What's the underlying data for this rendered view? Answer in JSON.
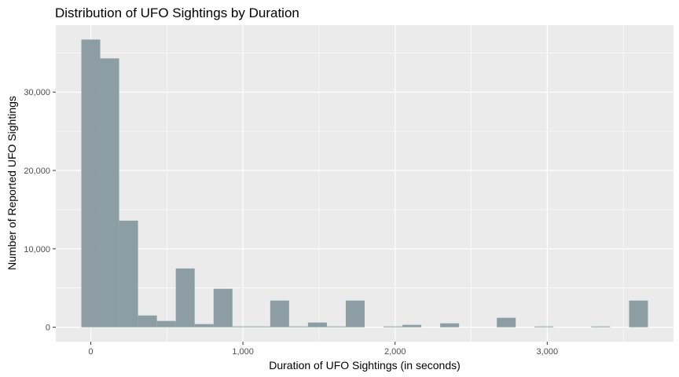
{
  "chart_data": {
    "type": "bar",
    "subtype": "histogram",
    "title": "Distribution of UFO Sightings by Duration",
    "xlabel": "Duration of UFO Sightings (in seconds)",
    "ylabel": "Number of Reported UFO Sightings",
    "bin_width": 124.1,
    "bin_centers": [
      0,
      124.1,
      248.3,
      372.4,
      496.6,
      620.7,
      744.8,
      869,
      993.1,
      1117.2,
      1241.4,
      1365.5,
      1489.7,
      1613.8,
      1737.9,
      1862.1,
      1986.2,
      2110.3,
      2234.5,
      2358.6,
      2482.8,
      2606.9,
      2731,
      2855.2,
      2979.3,
      3103.4,
      3227.6,
      3351.7,
      3475.9,
      3600
    ],
    "values": [
      36700,
      34300,
      13600,
      1500,
      800,
      7500,
      400,
      4900,
      100,
      100,
      3400,
      100,
      600,
      100,
      3400,
      0,
      100,
      300,
      0,
      500,
      0,
      0,
      1200,
      0,
      100,
      0,
      0,
      100,
      0,
      3400
    ],
    "xlim": [
      -230,
      3830
    ],
    "ylim": [
      -1840,
      38540
    ],
    "x_ticks": [
      0,
      1000,
      2000,
      3000
    ],
    "x_tick_labels": [
      "0",
      "1,000",
      "2,000",
      "3,000"
    ],
    "y_ticks": [
      0,
      10000,
      20000,
      30000
    ],
    "y_tick_labels": [
      "0",
      "10,000",
      "20,000",
      "30,000"
    ],
    "grid": true,
    "legend": "none",
    "colors": {
      "bar": "#8c9ea3",
      "panel_background": "#ebebeb",
      "grid_major": "#ffffff",
      "tick_label": "#4d4d4d",
      "text": "#000000"
    }
  }
}
